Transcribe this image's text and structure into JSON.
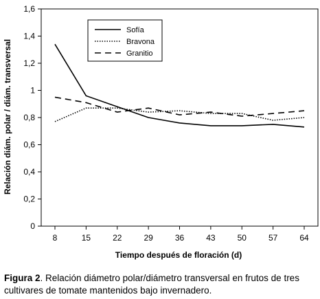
{
  "caption": {
    "label": "Figura 2",
    "text": ". Relación diámetro polar/diámetro transversal en frutos de tres cultivares de tomate mantenidos bajo invernadero."
  },
  "chart_data": {
    "type": "line",
    "title": "",
    "xlabel": "Tiempo después de floración (d)",
    "ylabel": "Relación diám. polar / diám. transversal",
    "x": [
      8,
      15,
      22,
      29,
      36,
      43,
      50,
      57,
      64
    ],
    "xticks": [
      "8",
      "15",
      "22",
      "29",
      "36",
      "43",
      "50",
      "57",
      "64"
    ],
    "ylim": [
      0,
      1.6
    ],
    "yticks": [
      "0",
      "0,2",
      "0,4",
      "0,6",
      "0,8",
      "1",
      "1,2",
      "1,4",
      "1,6"
    ],
    "grid": false,
    "legend_position": "top-center",
    "series": [
      {
        "name": "Sofía",
        "style": "solid",
        "color": "#000000",
        "values": [
          1.34,
          0.96,
          0.88,
          0.8,
          0.76,
          0.74,
          0.74,
          0.75,
          0.73
        ]
      },
      {
        "name": "Bravona",
        "style": "dotted",
        "color": "#000000",
        "values": [
          0.77,
          0.87,
          0.87,
          0.84,
          0.85,
          0.83,
          0.83,
          0.78,
          0.8
        ]
      },
      {
        "name": "Granitio",
        "style": "dashed",
        "color": "#000000",
        "values": [
          0.95,
          0.91,
          0.84,
          0.87,
          0.82,
          0.84,
          0.81,
          0.83,
          0.85
        ]
      }
    ]
  }
}
